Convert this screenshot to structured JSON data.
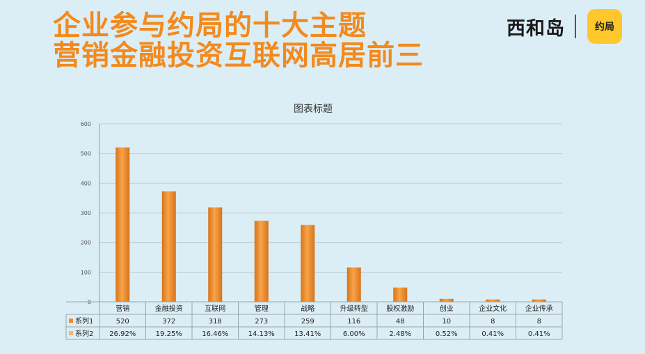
{
  "headline": {
    "line1": "企业参与约局的十大主题",
    "line2": "营销金融投资互联网高居前三"
  },
  "brand": {
    "name": "西和岛",
    "logo_text": "约局",
    "logo_color": "#ffc72c"
  },
  "colors": {
    "accent": "#f28a1e",
    "background": "#dceef5"
  },
  "chart_data": {
    "type": "bar",
    "title": "图表标题",
    "categories": [
      "营销",
      "金融投资",
      "互联网",
      "管理",
      "战略",
      "升级转型",
      "股权激励",
      "创业",
      "企业文化",
      "企业传承"
    ],
    "series": [
      {
        "name": "系列1",
        "values": [
          520,
          372,
          318,
          273,
          259,
          116,
          48,
          10,
          8,
          8
        ],
        "color": "#f08a24"
      },
      {
        "name": "系列2",
        "values": [
          "26.92%",
          "19.25%",
          "16.46%",
          "14.13%",
          "13.41%",
          "6.00%",
          "2.48%",
          "0.52%",
          "0.41%",
          "0.41%"
        ],
        "color": "#f6b27a"
      }
    ],
    "ylim": [
      0,
      600
    ],
    "yticks": [
      0,
      100,
      200,
      300,
      400,
      500,
      600
    ],
    "grid": true,
    "legend": "data-table"
  }
}
